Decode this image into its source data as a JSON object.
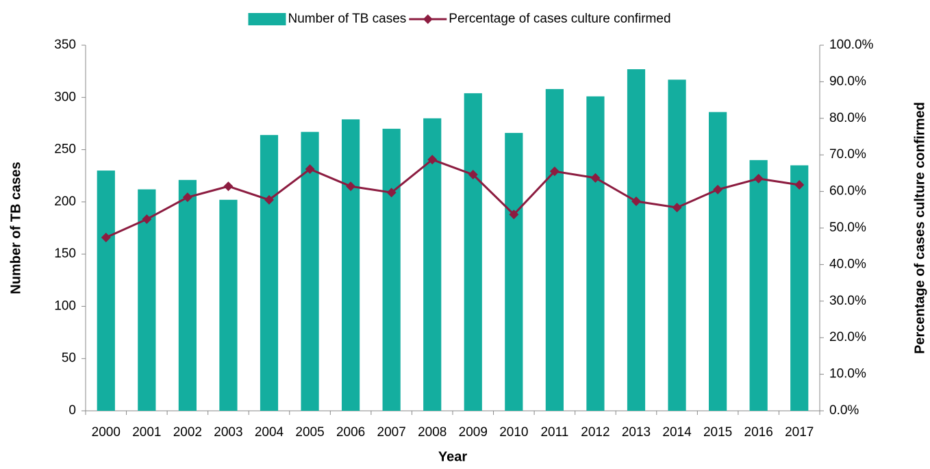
{
  "chart_data": {
    "type": "bar-line",
    "x_label": "Year",
    "y_label": "Number of TB cases",
    "y2_label": "Percentage of cases culture confirmed",
    "categories": [
      "2000",
      "2001",
      "2002",
      "2003",
      "2004",
      "2005",
      "2006",
      "2007",
      "2008",
      "2009",
      "2010",
      "2011",
      "2012",
      "2013",
      "2014",
      "2015",
      "2016",
      "2017"
    ],
    "series": [
      {
        "name": "Number of TB cases",
        "type": "bar",
        "color": "#14ae9f",
        "values": [
          230,
          212,
          221,
          202,
          264,
          267,
          279,
          270,
          280,
          304,
          266,
          308,
          301,
          327,
          317,
          286,
          240,
          235
        ]
      },
      {
        "name": "Percentage of cases culture confirmed",
        "type": "line",
        "axis": "y2",
        "color": "#8c1c40",
        "values": [
          47.4,
          52.4,
          58.4,
          61.4,
          57.7,
          66.1,
          61.4,
          59.7,
          68.7,
          64.6,
          53.7,
          65.5,
          63.7,
          57.3,
          55.6,
          60.5,
          63.5,
          61.8
        ]
      }
    ],
    "ylim": [
      0,
      350
    ],
    "yticks": [
      0,
      50,
      100,
      150,
      200,
      250,
      300,
      350
    ],
    "y2lim": [
      0,
      100
    ],
    "y2ticks": [
      {
        "value": 0,
        "label": "0.0%"
      },
      {
        "value": 10,
        "label": "10.0%"
      },
      {
        "value": 20,
        "label": "20.0%"
      },
      {
        "value": 30,
        "label": "30.0%"
      },
      {
        "value": 40,
        "label": "40.0%"
      },
      {
        "value": 50,
        "label": "50.0%"
      },
      {
        "value": 60,
        "label": "60.0%"
      },
      {
        "value": 70,
        "label": "70.0%"
      },
      {
        "value": 80,
        "label": "80.0%"
      },
      {
        "value": 90,
        "label": "90.0%"
      },
      {
        "value": 100,
        "label": "100.0%"
      }
    ],
    "legend": "top"
  }
}
